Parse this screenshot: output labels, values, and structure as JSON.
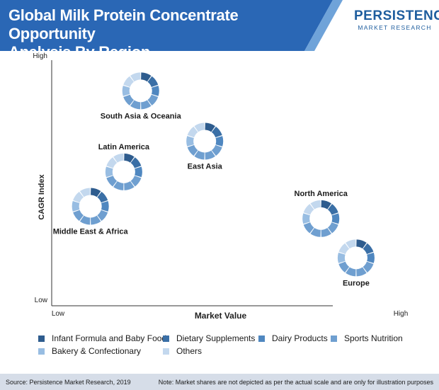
{
  "header": {
    "title_line1": "Global Milk Protein Concentrate Opportunity",
    "title_line2": "Analysis By Region",
    "logo_main": "PERSISTENCE",
    "logo_sub": "MARKET RESEARCH"
  },
  "chart_data": {
    "type": "bubble-donut",
    "xlabel": "Market Value",
    "ylabel": "CAGR Index",
    "x_ticks": [
      "Low",
      "High"
    ],
    "y_ticks": [
      "Low",
      "High"
    ],
    "colors": {
      "Infant Formula and Baby Food": "#2e5c8e",
      "Dietary Supplements": "#3a6fa6",
      "Dairy Products": "#4f87c0",
      "Sports Nutrition": "#6f9fd0",
      "Bakery & Confectionary": "#98bde2",
      "Others": "#c3d8ee"
    },
    "segments": [
      "Infant Formula and Baby Food",
      "Dietary Supplements",
      "Dairy Products",
      "Sports Nutrition",
      "Bakery & Confectionary",
      "Others"
    ],
    "regions": [
      {
        "name": "South Asia & Oceania",
        "x": 0.253,
        "y": 0.875,
        "label_pos": "below"
      },
      {
        "name": "Latin America",
        "x": 0.205,
        "y": 0.545,
        "label_pos": "above"
      },
      {
        "name": "East Asia",
        "x": 0.435,
        "y": 0.67,
        "label_pos": "below"
      },
      {
        "name": "Middle East & Africa",
        "x": 0.11,
        "y": 0.405,
        "label_pos": "below"
      },
      {
        "name": "North America",
        "x": 0.765,
        "y": 0.355,
        "label_pos": "above"
      },
      {
        "name": "Europe",
        "x": 0.865,
        "y": 0.195,
        "label_pos": "below"
      }
    ]
  },
  "legend": [
    {
      "label": "Infant Formula and Baby Food",
      "color": "#2e5c8e"
    },
    {
      "label": "Dietary Supplements",
      "color": "#3a6fa6"
    },
    {
      "label": "Dairy Products",
      "color": "#4f87c0"
    },
    {
      "label": "Sports Nutrition",
      "color": "#6f9fd0"
    },
    {
      "label": "Bakery & Confectionary",
      "color": "#98bde2"
    },
    {
      "label": "Others",
      "color": "#c3d8ee"
    }
  ],
  "footer": {
    "source": "Source: Persistence Market Research, 2019",
    "note": "Note: Market shares are not depicted as per the actual scale and are only for illustration purposes"
  }
}
